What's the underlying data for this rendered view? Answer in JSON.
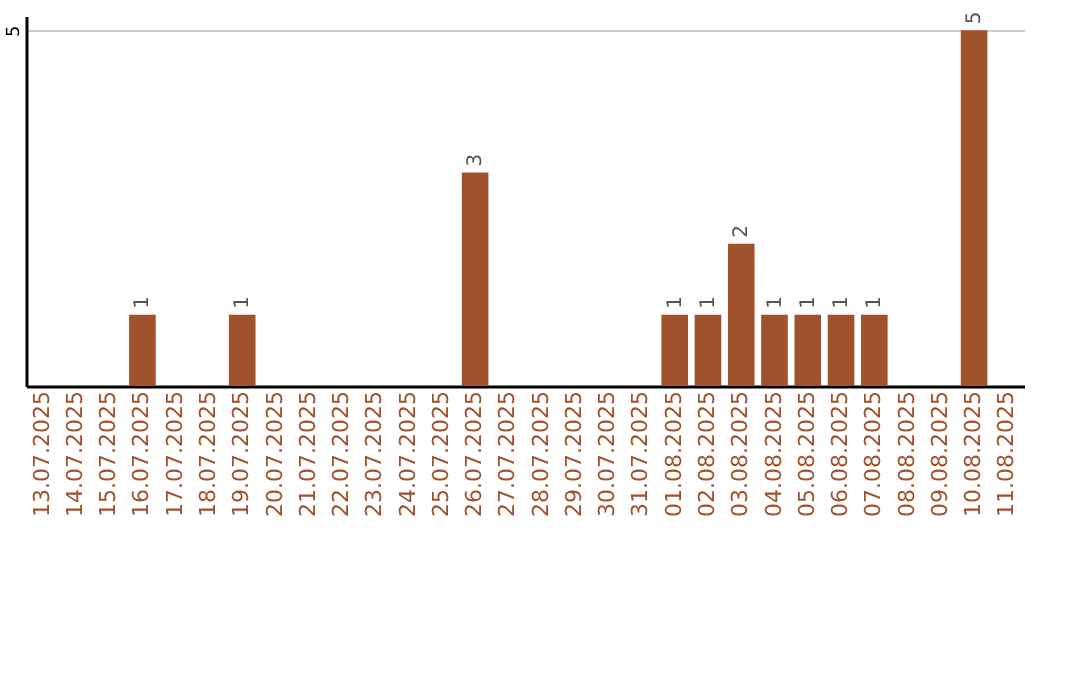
{
  "chart_data": {
    "type": "bar",
    "categories": [
      "13.07.2025",
      "14.07.2025",
      "15.07.2025",
      "16.07.2025",
      "17.07.2025",
      "18.07.2025",
      "19.07.2025",
      "20.07.2025",
      "21.07.2025",
      "22.07.2025",
      "23.07.2025",
      "24.07.2025",
      "25.07.2025",
      "26.07.2025",
      "27.07.2025",
      "28.07.2025",
      "29.07.2025",
      "30.07.2025",
      "31.07.2025",
      "01.08.2025",
      "02.08.2025",
      "03.08.2025",
      "04.08.2025",
      "05.08.2025",
      "06.08.2025",
      "07.08.2025",
      "08.08.2025",
      "09.08.2025",
      "10.08.2025",
      "11.08.2025"
    ],
    "values": [
      null,
      null,
      null,
      1,
      null,
      null,
      1,
      null,
      null,
      null,
      null,
      null,
      null,
      3,
      null,
      null,
      null,
      null,
      null,
      1,
      1,
      2,
      1,
      1,
      1,
      1,
      null,
      null,
      5,
      null
    ],
    "color": "#a0522d",
    "ylim": [
      0,
      5.2
    ],
    "yticks": [
      5
    ],
    "grid": "y",
    "data_labels": true
  }
}
